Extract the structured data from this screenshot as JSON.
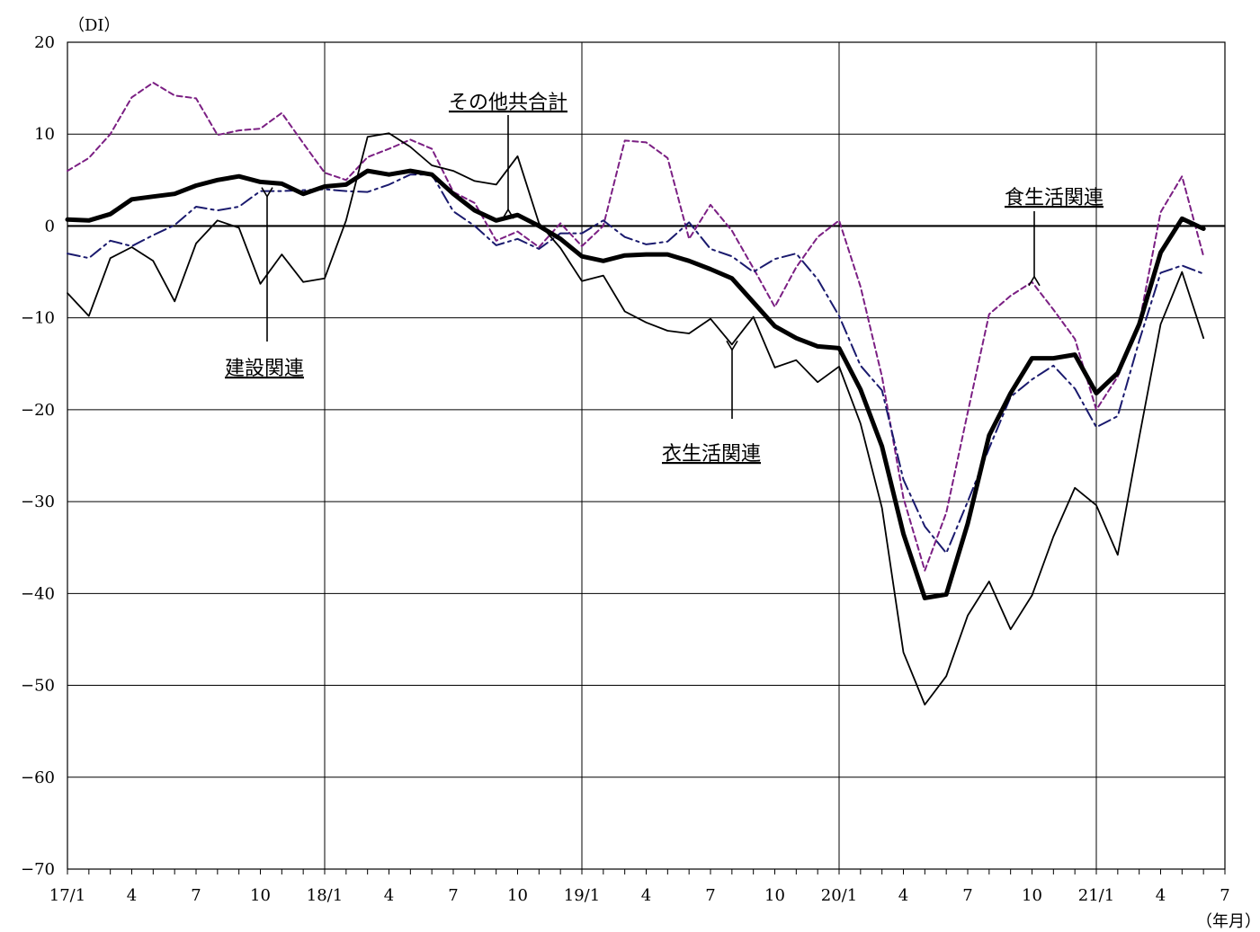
{
  "chart_data": {
    "type": "line",
    "y_unit": "（DI）",
    "x_unit": "（年月）",
    "ylim": [
      -70,
      20
    ],
    "yticks": [
      20,
      10,
      0,
      -10,
      -20,
      -30,
      -40,
      -50,
      -60,
      -70
    ],
    "ytick_labels": [
      "20",
      "10",
      "0",
      "−10",
      "−20",
      "−30",
      "−40",
      "−50",
      "−60",
      "−70"
    ],
    "x_tick_labels": [
      {
        "i": 0,
        "label": "17/1"
      },
      {
        "i": 3,
        "label": "4"
      },
      {
        "i": 6,
        "label": "7"
      },
      {
        "i": 9,
        "label": "10"
      },
      {
        "i": 12,
        "label": "18/1"
      },
      {
        "i": 15,
        "label": "4"
      },
      {
        "i": 18,
        "label": "7"
      },
      {
        "i": 21,
        "label": "10"
      },
      {
        "i": 24,
        "label": "19/1"
      },
      {
        "i": 27,
        "label": "4"
      },
      {
        "i": 30,
        "label": "7"
      },
      {
        "i": 33,
        "label": "10"
      },
      {
        "i": 36,
        "label": "20/1"
      },
      {
        "i": 39,
        "label": "4"
      },
      {
        "i": 42,
        "label": "7"
      },
      {
        "i": 45,
        "label": "10"
      },
      {
        "i": 48,
        "label": "21/1"
      },
      {
        "i": 51,
        "label": "4"
      },
      {
        "i": 54,
        "label": "7"
      }
    ],
    "n_points": 54,
    "grid": true,
    "series": [
      {
        "name": "食生活関連",
        "color": "#7b1f83",
        "style": "dashed",
        "values": [
          6.0,
          7.4,
          10.0,
          14.0,
          15.6,
          14.2,
          13.9,
          9.9,
          10.4,
          10.6,
          12.3,
          9.0,
          5.8,
          5.0,
          7.5,
          8.4,
          9.4,
          8.4,
          3.7,
          2.5,
          -1.6,
          -0.6,
          -2.3,
          0.3,
          -2.2,
          0.0,
          9.3,
          9.1,
          7.4,
          -1.4,
          2.3,
          -0.5,
          -4.6,
          -8.8,
          -4.5,
          -1.2,
          0.6,
          -6.6,
          -16.4,
          -29.6,
          -37.5,
          -31.2,
          -20.3,
          -9.6,
          -7.6,
          -6.1,
          -9.1,
          -12.3,
          -20.0,
          -16.4,
          -10.6,
          1.5,
          5.4,
          -3.3
        ]
      },
      {
        "name": "建設関連",
        "color": "#1a1a6e",
        "style": "dashdot",
        "values": [
          -3.0,
          -3.5,
          -1.6,
          -2.2,
          -1.0,
          0.1,
          2.1,
          1.7,
          2.1,
          3.8,
          3.8,
          3.9,
          4.0,
          3.8,
          3.7,
          4.5,
          5.6,
          5.6,
          1.6,
          0.0,
          -2.1,
          -1.4,
          -2.5,
          -0.8,
          -0.8,
          0.6,
          -1.2,
          -2.0,
          -1.7,
          0.4,
          -2.5,
          -3.3,
          -5.0,
          -3.6,
          -3.0,
          -5.8,
          -9.8,
          -15.2,
          -17.9,
          -27.6,
          -32.7,
          -35.6,
          -30.0,
          -24.2,
          -18.6,
          -16.7,
          -15.2,
          -17.7,
          -21.9,
          -20.7,
          -12.5,
          -5.1,
          -4.3,
          -5.2
        ]
      },
      {
        "name": "衣生活関連",
        "color": "#000000",
        "style": "thin",
        "values": [
          -7.3,
          -9.8,
          -3.5,
          -2.3,
          -3.8,
          -8.2,
          -1.9,
          0.6,
          -0.2,
          -6.3,
          -3.1,
          -6.1,
          -5.7,
          0.6,
          9.7,
          10.1,
          8.6,
          6.6,
          6.0,
          4.9,
          4.5,
          7.6,
          0.3,
          -2.4,
          -6.0,
          -5.4,
          -9.3,
          -10.5,
          -11.4,
          -11.7,
          -10.1,
          -12.9,
          -9.9,
          -15.4,
          -14.6,
          -17.0,
          -15.3,
          -21.5,
          -30.7,
          -46.4,
          -52.1,
          -49.0,
          -42.4,
          -38.7,
          -43.9,
          -40.2,
          -33.8,
          -28.5,
          -30.4,
          -35.8,
          -23.0,
          -10.7,
          -5.0,
          -12.2
        ]
      },
      {
        "name": "その他共合計",
        "color": "#000000",
        "style": "bold",
        "values": [
          0.7,
          0.6,
          1.3,
          2.9,
          3.2,
          3.5,
          4.4,
          5.0,
          5.4,
          4.8,
          4.6,
          3.5,
          4.3,
          4.5,
          6.0,
          5.6,
          6.0,
          5.6,
          3.5,
          1.7,
          0.6,
          1.2,
          0.0,
          -1.4,
          -3.3,
          -3.8,
          -3.2,
          -3.1,
          -3.1,
          -3.8,
          -4.7,
          -5.7,
          -8.3,
          -10.9,
          -12.2,
          -13.1,
          -13.3,
          -17.8,
          -24.0,
          -33.5,
          -40.5,
          -40.1,
          -32.4,
          -22.8,
          -18.2,
          -14.4,
          -14.4,
          -14.0,
          -18.2,
          -16.0,
          -10.7,
          -2.9,
          0.8,
          -0.3
        ]
      }
    ],
    "annotations": [
      {
        "text": "その他共合計",
        "series": "その他共合計",
        "i": 21
      },
      {
        "text": "食生活関連",
        "series": "食生活関連",
        "i": 45
      },
      {
        "text": "建設関連",
        "series": "建設関連",
        "i": 9
      },
      {
        "text": "衣生活関連",
        "series": "衣生活関連",
        "i": 31
      }
    ]
  }
}
